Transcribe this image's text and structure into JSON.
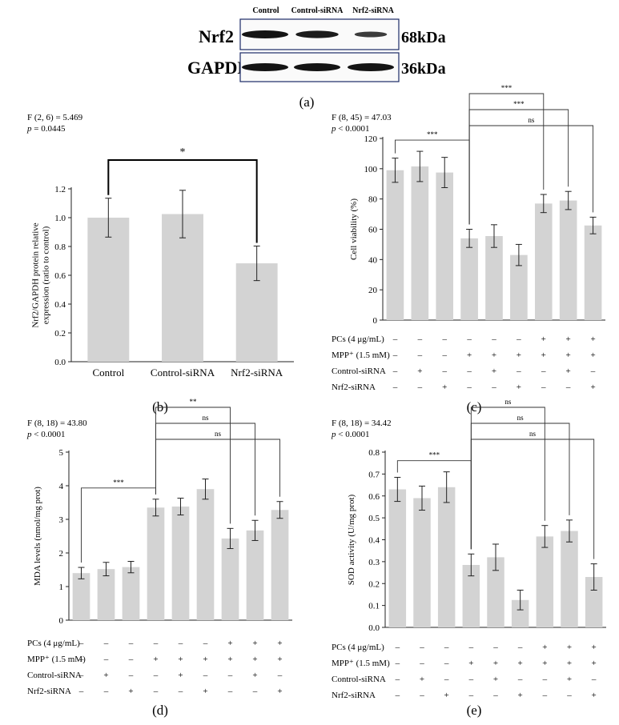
{
  "panel_a": {
    "lanes": [
      "Control",
      "Control-siRNA",
      "Nrf2-siRNA"
    ],
    "rows": [
      {
        "protein": "Nrf2",
        "size": "68kDa",
        "band_intensity": [
          1.0,
          0.92,
          0.62
        ]
      },
      {
        "protein": "GAPDH",
        "size": "36kDa",
        "band_intensity": [
          1.0,
          1.0,
          1.0
        ]
      }
    ],
    "label": "(a)"
  },
  "chart_data": [
    {
      "id": "b",
      "type": "bar",
      "panel_label": "(b)",
      "stat_f": "F (2, 6) = 5.469",
      "stat_p_italic": "p",
      "stat_p_rest": " = 0.0445",
      "ylabel_lines": [
        "Nrf2/GAPDH protein relative",
        "expression (ratio to control)"
      ],
      "categories": [
        "Control",
        "Control-siRNA",
        "Nrf2-siRNA"
      ],
      "values": [
        1.0,
        1.025,
        0.683
      ],
      "errors": [
        0.135,
        0.165,
        0.12
      ],
      "ylim": [
        0,
        1.2
      ],
      "yticks": [
        "0.0",
        "0.2",
        "0.4",
        "0.6",
        "0.8",
        "1.0",
        "1.2"
      ],
      "comparisons": [
        {
          "from": 0,
          "to": 2,
          "label": "*"
        }
      ]
    },
    {
      "id": "c",
      "type": "bar",
      "panel_label": "(c)",
      "stat_f": "F (8, 45) = 47.03",
      "stat_p_italic": "p",
      "stat_p_rest": " < 0.0001",
      "ylabel_lines": [
        "Cell viability (%)"
      ],
      "values": [
        99,
        101.5,
        97.5,
        54,
        55.5,
        43,
        77,
        79,
        62.5
      ],
      "errors": [
        8,
        10,
        10,
        6,
        7.5,
        7,
        6,
        6,
        5.5
      ],
      "ylim": [
        0,
        120
      ],
      "yticks": [
        "0",
        "20",
        "40",
        "60",
        "80",
        "100",
        "120"
      ],
      "comparisons": [
        {
          "from": 0,
          "to": 3,
          "label": "***"
        },
        {
          "from": 3,
          "to": 6,
          "label": "***"
        },
        {
          "from": 3,
          "to": 7,
          "label": "***"
        },
        {
          "from": 3,
          "to": 8,
          "label": "ns"
        }
      ],
      "conditions": [
        {
          "label": "PCs (4 μg/mL)",
          "marks": [
            "–",
            "–",
            "–",
            "–",
            "–",
            "–",
            "+",
            "+",
            "+"
          ]
        },
        {
          "label": "MPP⁺ (1.5 mM)",
          "marks": [
            "–",
            "–",
            "–",
            "+",
            "+",
            "+",
            "+",
            "+",
            "+"
          ]
        },
        {
          "label": "Control-siRNA",
          "marks": [
            "–",
            "+",
            "–",
            "–",
            "+",
            "–",
            "–",
            "+",
            "–"
          ]
        },
        {
          "label": "Nrf2-siRNA",
          "marks": [
            "–",
            "–",
            "+",
            "–",
            "–",
            "+",
            "–",
            "–",
            "+"
          ]
        }
      ]
    },
    {
      "id": "d",
      "type": "bar",
      "panel_label": "(d)",
      "stat_f": "F (8, 18) = 43.80",
      "stat_p_italic": "p",
      "stat_p_rest": " < 0.0001",
      "ylabel_lines": [
        "MDA levels (nmol/mg prot)"
      ],
      "values": [
        1.4,
        1.52,
        1.58,
        3.35,
        3.38,
        3.9,
        2.43,
        2.67,
        3.28
      ],
      "errors": [
        0.17,
        0.2,
        0.17,
        0.25,
        0.25,
        0.3,
        0.3,
        0.3,
        0.25
      ],
      "ylim": [
        0,
        5
      ],
      "yticks": [
        "0",
        "1",
        "2",
        "3",
        "4",
        "5"
      ],
      "comparisons": [
        {
          "from": 0,
          "to": 3,
          "label": "***"
        },
        {
          "from": 3,
          "to": 6,
          "label": "**"
        },
        {
          "from": 3,
          "to": 7,
          "label": "ns"
        },
        {
          "from": 3,
          "to": 8,
          "label": "ns"
        }
      ],
      "conditions": [
        {
          "label": "PCs (4 μg/mL)",
          "marks": [
            "–",
            "–",
            "–",
            "–",
            "–",
            "–",
            "+",
            "+",
            "+"
          ]
        },
        {
          "label": "MPP⁺ (1.5 mM)",
          "marks": [
            "–",
            "–",
            "–",
            "+",
            "+",
            "+",
            "+",
            "+",
            "+"
          ]
        },
        {
          "label": "Control-siRNA",
          "marks": [
            "–",
            "+",
            "–",
            "–",
            "+",
            "–",
            "–",
            "+",
            "–"
          ]
        },
        {
          "label": "Nrf2-siRNA",
          "marks": [
            "–",
            "–",
            "+",
            "–",
            "–",
            "+",
            "–",
            "–",
            "+"
          ]
        }
      ]
    },
    {
      "id": "e",
      "type": "bar",
      "panel_label": "(e)",
      "stat_f": "F (8, 18) = 34.42",
      "stat_p_italic": "p",
      "stat_p_rest": " < 0.0001",
      "ylabel_lines": [
        "SOD activity (U/mg prot)"
      ],
      "values": [
        0.63,
        0.59,
        0.64,
        0.285,
        0.32,
        0.125,
        0.415,
        0.44,
        0.23
      ],
      "errors": [
        0.055,
        0.055,
        0.07,
        0.05,
        0.06,
        0.045,
        0.05,
        0.05,
        0.06
      ],
      "ylim": [
        0,
        0.8
      ],
      "yticks": [
        "0.0",
        "0.1",
        "0.2",
        "0.3",
        "0.4",
        "0.5",
        "0.6",
        "0.7",
        "0.8"
      ],
      "comparisons": [
        {
          "from": 0,
          "to": 3,
          "label": "***"
        },
        {
          "from": 3,
          "to": 6,
          "label": "ns"
        },
        {
          "from": 3,
          "to": 7,
          "label": "ns"
        },
        {
          "from": 3,
          "to": 8,
          "label": "ns"
        }
      ],
      "conditions": [
        {
          "label": "PCs (4 μg/mL)",
          "marks": [
            "–",
            "–",
            "–",
            "–",
            "–",
            "–",
            "+",
            "+",
            "+"
          ]
        },
        {
          "label": "MPP⁺ (1.5 mM)",
          "marks": [
            "–",
            "–",
            "–",
            "+",
            "+",
            "+",
            "+",
            "+",
            "+"
          ]
        },
        {
          "label": "Control-siRNA",
          "marks": [
            "–",
            "+",
            "–",
            "–",
            "+",
            "–",
            "–",
            "+",
            "–"
          ]
        },
        {
          "label": "Nrf2-siRNA",
          "marks": [
            "–",
            "–",
            "+",
            "–",
            "–",
            "+",
            "–",
            "–",
            "+"
          ]
        }
      ]
    }
  ],
  "colors": {
    "bar": "#d3d3d3",
    "axis": "#222222",
    "band": "#141414",
    "box_border": "#1a2a66"
  }
}
